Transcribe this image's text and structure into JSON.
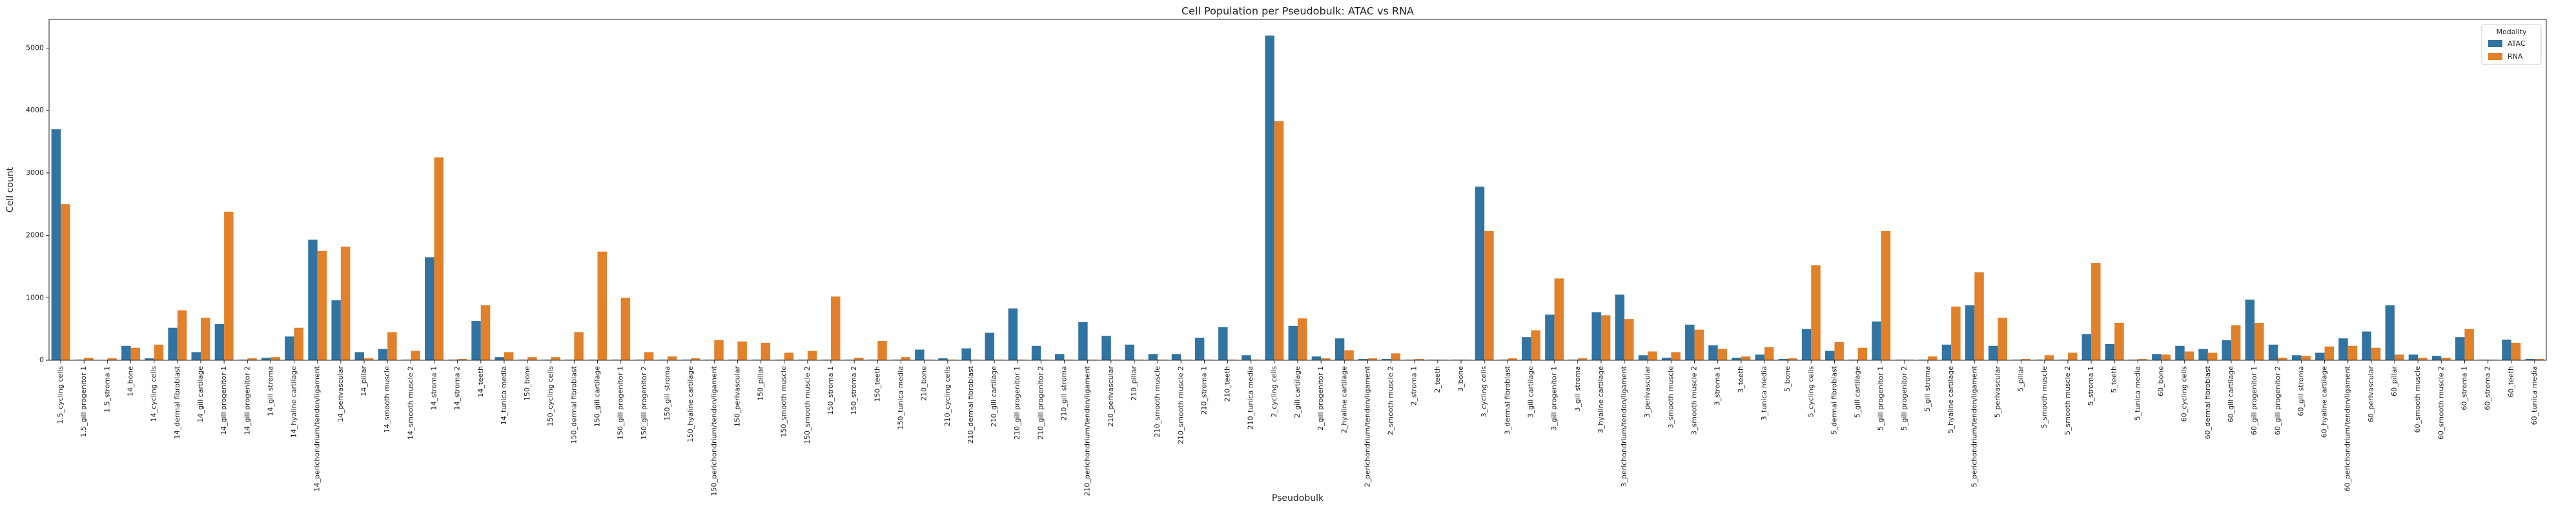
{
  "chart_data": {
    "type": "bar",
    "title": "Cell Population per Pseudobulk: ATAC vs RNA",
    "x_label": "Pseudobulk",
    "y_label": "Cell count",
    "legend_title": "Modality",
    "legend_loc": "upper right",
    "categories": [
      "1.5_cycling cells",
      "1.5_gill progenitor 1",
      "1.5_stroma 1",
      "14_bone",
      "14_cycling cells",
      "14_dermal fibroblast",
      "14_gill cartilage",
      "14_gill progenitor 1",
      "14_gill progenitor 2",
      "14_gill stroma",
      "14_hyaline cartilage",
      "14_perichondrium/tendon/ligament",
      "14_perivascular",
      "14_pillar",
      "14_smooth muscle",
      "14_smooth muscle 2",
      "14_stroma 1",
      "14_stroma 2",
      "14_teeth",
      "14_tunica media",
      "150_bone",
      "150_cycling cells",
      "150_dermal fibroblast",
      "150_gill cartilage",
      "150_gill progenitor 1",
      "150_gill progenitor 2",
      "150_gill stroma",
      "150_hyaline cartilage",
      "150_perichondrium/tendon/ligament",
      "150_perivascular",
      "150_pillar",
      "150_smooth muscle",
      "150_smooth muscle 2",
      "150_stroma 1",
      "150_stroma 2",
      "150_teeth",
      "150_tunica media",
      "210_bone",
      "210_cycling cells",
      "210_dermal fibroblast",
      "210_gill cartilage",
      "210_gill progenitor 1",
      "210_gill progenitor 2",
      "210_gill stroma",
      "210_perichondrium/tendon/ligament",
      "210_perivascular",
      "210_pillar",
      "210_smooth muscle",
      "210_smooth muscle 2",
      "210_stroma 1",
      "210_teeth",
      "210_tunica media",
      "2_cycling cells",
      "2_gill cartilage",
      "2_gill progenitor 1",
      "2_hyaline cartilage",
      "2_perichondrium/tendon/ligament",
      "2_smooth muscle 2",
      "2_stroma 1",
      "2_teeth",
      "3_bone",
      "3_cycling cells",
      "3_dermal fibroblast",
      "3_gill cartilage",
      "3_gill progenitor 1",
      "3_gill stroma",
      "3_hyaline cartilage",
      "3_perichondrium/tendon/ligament",
      "3_perivascular",
      "3_smooth muscle",
      "3_smooth muscle 2",
      "3_stroma 1",
      "3_teeth",
      "3_tunica media",
      "5_bone",
      "5_cycling cells",
      "5_dermal fibroblast",
      "5_gill cartilage",
      "5_gill progenitor 1",
      "5_gill progenitor 2",
      "5_gill stroma",
      "5_hyaline cartilage",
      "5_perichondrium/tendon/ligament",
      "5_perivascular",
      "5_pillar",
      "5_smooth muscle",
      "5_smooth muscle 2",
      "5_stroma 1",
      "5_teeth",
      "5_tunica media",
      "60_bone",
      "60_cycling cells",
      "60_dermal fibroblast",
      "60_gill cartilage",
      "60_gill progenitor 1",
      "60_gill progenitor 2",
      "60_gill stroma",
      "60_hyaline cartilage",
      "60_perichondrium/tendon/ligament",
      "60_perivascular",
      "60_pillar",
      "60_smooth muscle",
      "60_smooth muscle 2",
      "60_stroma 1",
      "60_stroma 2",
      "60_teeth",
      "60_tunica media"
    ],
    "series": [
      {
        "name": "ATAC",
        "color": "#3274a1",
        "values": [
          3700,
          10,
          5,
          230,
          30,
          520,
          130,
          580,
          10,
          40,
          380,
          1930,
          960,
          130,
          180,
          10,
          1650,
          10,
          630,
          50,
          10,
          10,
          10,
          10,
          10,
          10,
          10,
          10,
          10,
          10,
          10,
          10,
          10,
          10,
          10,
          10,
          10,
          170,
          30,
          190,
          440,
          830,
          230,
          100,
          610,
          390,
          250,
          100,
          100,
          360,
          530,
          80,
          5200,
          550,
          60,
          350,
          20,
          20,
          10,
          10,
          10,
          2780,
          10,
          370,
          730,
          10,
          770,
          1050,
          80,
          40,
          570,
          240,
          40,
          90,
          20,
          500,
          150,
          10,
          620,
          10,
          10,
          250,
          880,
          230,
          10,
          10,
          10,
          420,
          260,
          10,
          100,
          230,
          180,
          320,
          970,
          250,
          80,
          120,
          350,
          460,
          880,
          90,
          70,
          370,
          10,
          330,
          20
        ]
      },
      {
        "name": "RNA",
        "color": "#e1812c",
        "values": [
          2500,
          40,
          30,
          200,
          250,
          800,
          680,
          2380,
          30,
          50,
          520,
          1750,
          1820,
          30,
          450,
          150,
          3250,
          20,
          880,
          130,
          50,
          50,
          450,
          1740,
          1000,
          130,
          60,
          30,
          320,
          300,
          280,
          120,
          150,
          1020,
          40,
          310,
          50,
          10,
          10,
          10,
          10,
          10,
          10,
          10,
          10,
          10,
          10,
          10,
          10,
          10,
          10,
          10,
          3830,
          670,
          30,
          160,
          30,
          110,
          20,
          10,
          10,
          2070,
          30,
          480,
          1310,
          30,
          720,
          660,
          140,
          130,
          490,
          180,
          60,
          210,
          30,
          1520,
          290,
          200,
          2070,
          10,
          60,
          860,
          1410,
          680,
          20,
          80,
          120,
          1560,
          600,
          20,
          90,
          140,
          120,
          560,
          600,
          40,
          70,
          220,
          230,
          200,
          90,
          40,
          40,
          500,
          10,
          280,
          20
        ]
      }
    ],
    "ylim": [
      0,
      5460
    ],
    "yticks": [
      0,
      1000,
      2000,
      3000,
      4000,
      5000
    ],
    "grid": false
  }
}
